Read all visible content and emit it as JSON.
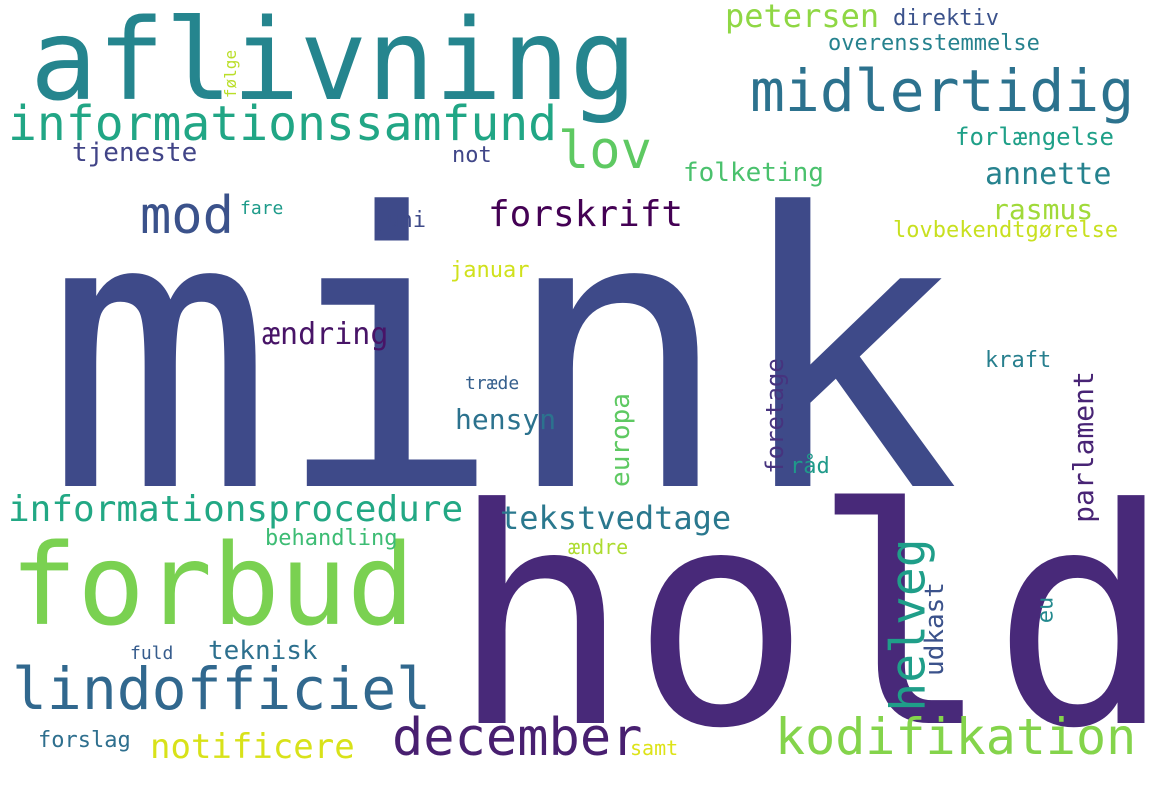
{
  "words": [
    {
      "text": "mink",
      "color": "#3e4a89"
    },
    {
      "text": "hold",
      "color": "#482979"
    },
    {
      "text": "aflivning",
      "color": "#25858e"
    },
    {
      "text": "forbud",
      "color": "#7ad151"
    },
    {
      "text": "midlertidig",
      "color": "#2c728e"
    },
    {
      "text": "informationssamfund",
      "color": "#21a685"
    },
    {
      "text": "lov",
      "color": "#5ec962"
    },
    {
      "text": "lindofficiel",
      "color": "#31688e"
    },
    {
      "text": "december",
      "color": "#481f70"
    },
    {
      "text": "kodifikation",
      "color": "#84d44b"
    },
    {
      "text": "mod",
      "color": "#3b528b"
    },
    {
      "text": "helveg",
      "color": "#1f9e89"
    },
    {
      "text": "informationsprocedure",
      "color": "#22a884"
    },
    {
      "text": "notificere",
      "color": "#d8e219"
    },
    {
      "text": "forskrift",
      "color": "#440154"
    },
    {
      "text": "tekstvedtage",
      "color": "#2a788e"
    },
    {
      "text": "annette",
      "color": "#26828e"
    },
    {
      "text": "petersen",
      "color": "#8fd744"
    },
    {
      "text": "rasmus",
      "color": "#a0da39"
    },
    {
      "text": "parlament",
      "color": "#482475"
    },
    {
      "text": "ændring",
      "color": "#481467"
    },
    {
      "text": "hensyn",
      "color": "#2c728e"
    },
    {
      "text": "europa",
      "color": "#5ec962"
    },
    {
      "text": "foretage",
      "color": "#46337e"
    },
    {
      "text": "folketing",
      "color": "#4ac16d"
    },
    {
      "text": "forlængelse",
      "color": "#1fa088"
    },
    {
      "text": "tjeneste",
      "color": "#414487"
    },
    {
      "text": "udkast",
      "color": "#3b528b"
    },
    {
      "text": "teknisk",
      "color": "#2d708e"
    },
    {
      "text": "direktiv",
      "color": "#3b528b"
    },
    {
      "text": "overensstemmelse",
      "color": "#26828e"
    },
    {
      "text": "lovbekendtgørelse",
      "color": "#c8e020"
    },
    {
      "text": "januar",
      "color": "#d0e11c"
    },
    {
      "text": "behandling",
      "color": "#3dbc74"
    },
    {
      "text": "not",
      "color": "#404688"
    },
    {
      "text": "juni",
      "color": "#3e4a89"
    },
    {
      "text": "kraft",
      "color": "#277f8e"
    },
    {
      "text": "råd",
      "color": "#1f9a8a"
    },
    {
      "text": "eu",
      "color": "#23898e"
    },
    {
      "text": "forslag",
      "color": "#2e6f8e"
    },
    {
      "text": "ændre",
      "color": "#addc30"
    },
    {
      "text": "samt",
      "color": "#dde318"
    },
    {
      "text": "fuld",
      "color": "#365c8d"
    },
    {
      "text": "fare",
      "color": "#1e9b8a"
    },
    {
      "text": "følge",
      "color": "#bade28"
    },
    {
      "text": "træde",
      "color": "#355f8d"
    }
  ]
}
